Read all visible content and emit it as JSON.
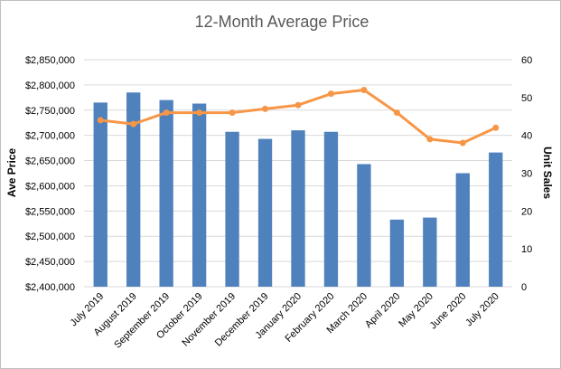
{
  "chart_data": {
    "type": "bar",
    "title": "12-Month Average Price",
    "ylabel": "Ave Price",
    "y2label": "Unit Sales",
    "categories": [
      "July 2019",
      "August 2019",
      "September 2019",
      "October 2019",
      "November 2019",
      "December 2019",
      "January 2020",
      "February 2020",
      "March 2020",
      "April 2020",
      "May 2020",
      "June 2020",
      "July 2020"
    ],
    "ylim": [
      2400000,
      2850000
    ],
    "yticks": [
      "$2,400,000",
      "$2,450,000",
      "$2,500,000",
      "$2,550,000",
      "$2,600,000",
      "$2,650,000",
      "$2,700,000",
      "$2,750,000",
      "$2,800,000",
      "$2,850,000"
    ],
    "y2lim": [
      0,
      60
    ],
    "y2ticks": [
      "0",
      "10",
      "20",
      "30",
      "40",
      "50",
      "60"
    ],
    "grid": true,
    "series": [
      {
        "type": "bar",
        "axis": "left",
        "color": "#4f81bd",
        "values": [
          2765000,
          2785000,
          2770000,
          2763000,
          2707000,
          2693000,
          2710000,
          2707000,
          2643000,
          2533000,
          2537000,
          2625000,
          2666000
        ]
      },
      {
        "type": "line",
        "axis": "right",
        "color": "#f79646",
        "values": [
          44,
          43,
          46,
          46,
          46,
          47,
          48,
          51,
          52,
          46,
          39,
          38,
          42
        ]
      }
    ]
  }
}
